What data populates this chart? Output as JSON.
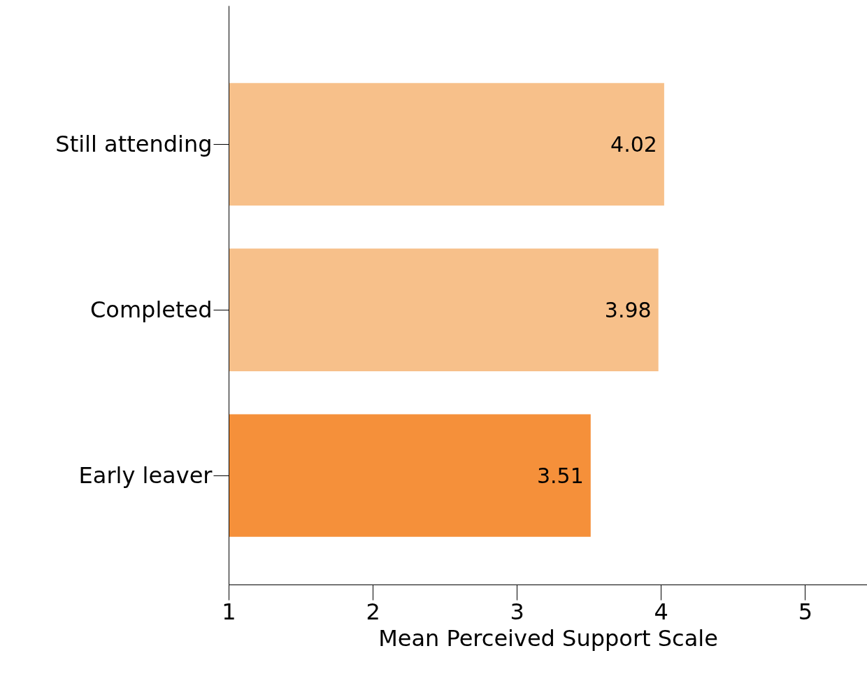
{
  "chart_data": {
    "type": "bar",
    "orientation": "horizontal",
    "xlabel": "Mean Perceived Support Scale",
    "categories": [
      "Still attending",
      "Completed",
      "Early leaver"
    ],
    "values": [
      4.02,
      3.98,
      3.51
    ],
    "colors": [
      "#f7c08a",
      "#f7c08a",
      "#f5903a"
    ],
    "xlim": [
      1,
      5.43
    ],
    "xticks": [
      1,
      2,
      3,
      4,
      5
    ],
    "data_labels": true,
    "grid": false
  }
}
